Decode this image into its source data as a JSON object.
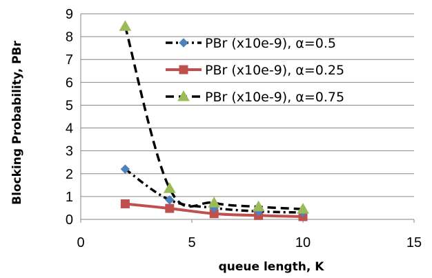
{
  "chart_data": {
    "type": "line",
    "xlabel": "queue length, K",
    "ylabel": "Blocking Probability, PBr",
    "xlim": [
      0,
      15
    ],
    "ylim": [
      0,
      9
    ],
    "xticks": [
      "0",
      "5",
      "10",
      "15"
    ],
    "yticks": [
      "0",
      "1",
      "2",
      "3",
      "4",
      "5",
      "6",
      "7",
      "8",
      "9"
    ],
    "grid": "horizontal",
    "legend_position": "top-right",
    "series": [
      {
        "name": "PBr (x10e-9), α=0.5",
        "color": "#4f81bd",
        "line_color": "#000000",
        "line_style": "dash-dot",
        "marker": "diamond",
        "x": [
          2,
          4,
          6,
          8,
          10
        ],
        "y": [
          2.2,
          0.85,
          0.5,
          0.35,
          0.3
        ]
      },
      {
        "name": "PBr (x10e-9), α=0.25",
        "color": "#c0504d",
        "line_color": "#c0504d",
        "line_style": "solid",
        "marker": "square",
        "x": [
          2,
          4,
          6,
          8,
          10
        ],
        "y": [
          0.68,
          0.48,
          0.25,
          0.17,
          0.12
        ]
      },
      {
        "name": "PBr (x10e-9), α=0.75",
        "color": "#9bbb59",
        "line_color": "#000000",
        "line_style": "dashed",
        "marker": "triangle",
        "x": [
          2,
          4,
          6,
          8,
          10
        ],
        "y": [
          8.45,
          1.35,
          0.72,
          0.55,
          0.45
        ]
      }
    ]
  }
}
